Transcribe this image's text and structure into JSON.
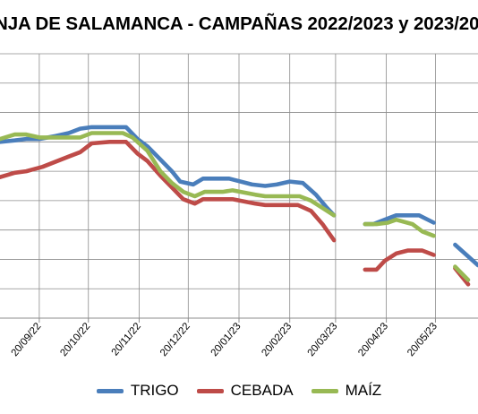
{
  "chart_data": {
    "type": "line",
    "title": "NJA DE SALAMANCA - CAMPAÑAS 2022/2023 y 2023/20",
    "xlabel": "",
    "ylabel": "",
    "x_tick_labels": [
      "20/09/22",
      "20/10/22",
      "20/11/22",
      "20/12/22",
      "20/01/23",
      "20/02/23",
      "20/03/23",
      "20/04/23",
      "20/05/23"
    ],
    "x_range": [
      "2022-08-27",
      "2023-06-15"
    ],
    "y_range": [
      0,
      9
    ],
    "grid": true,
    "legend_position": "bottom",
    "series": [
      {
        "name": "TRIGO",
        "color": "#4a7ebb",
        "segments": [
          [
            [
              "2022-08-27",
              6.0
            ],
            [
              "2022-09-05",
              6.05
            ],
            [
              "2022-09-12",
              6.1
            ],
            [
              "2022-09-20",
              6.1
            ],
            [
              "2022-09-30",
              6.2
            ],
            [
              "2022-10-08",
              6.3
            ],
            [
              "2022-10-15",
              6.45
            ],
            [
              "2022-10-22",
              6.5
            ],
            [
              "2022-11-05",
              6.5
            ],
            [
              "2022-11-12",
              6.5
            ],
            [
              "2022-11-19",
              6.1
            ],
            [
              "2022-11-25",
              5.85
            ],
            [
              "2022-12-03",
              5.4
            ],
            [
              "2022-12-10",
              5.0
            ],
            [
              "2022-12-15",
              4.65
            ],
            [
              "2022-12-23",
              4.55
            ],
            [
              "2022-12-29",
              4.75
            ],
            [
              "2023-01-14",
              4.75
            ],
            [
              "2023-01-28",
              4.55
            ],
            [
              "2023-02-05",
              4.5
            ],
            [
              "2023-02-12",
              4.55
            ],
            [
              "2023-02-20",
              4.65
            ],
            [
              "2023-02-28",
              4.6
            ],
            [
              "2023-03-08",
              4.2
            ],
            [
              "2023-03-14",
              3.8
            ],
            [
              "2023-03-19",
              3.5
            ]
          ],
          [
            [
              "2023-04-07",
              3.2
            ],
            [
              "2023-04-12",
              3.2
            ],
            [
              "2023-04-19",
              3.35
            ],
            [
              "2023-04-26",
              3.5
            ],
            [
              "2023-05-10",
              3.5
            ],
            [
              "2023-05-19",
              3.25
            ]
          ],
          [
            [
              "2023-06-01",
              2.5
            ],
            [
              "2023-06-15",
              1.8
            ]
          ]
        ]
      },
      {
        "name": "CEBADA",
        "color": "#be4b48",
        "segments": [
          [
            [
              "2022-08-27",
              4.8
            ],
            [
              "2022-09-05",
              4.95
            ],
            [
              "2022-09-12",
              5.0
            ],
            [
              "2022-09-22",
              5.15
            ],
            [
              "2022-10-08",
              5.5
            ],
            [
              "2022-10-15",
              5.65
            ],
            [
              "2022-10-22",
              5.95
            ],
            [
              "2022-11-02",
              6.0
            ],
            [
              "2022-11-12",
              6.0
            ],
            [
              "2022-11-19",
              5.6
            ],
            [
              "2022-11-25",
              5.35
            ],
            [
              "2022-12-03",
              4.85
            ],
            [
              "2022-12-10",
              4.45
            ],
            [
              "2022-12-17",
              4.05
            ],
            [
              "2022-12-24",
              3.9
            ],
            [
              "2022-12-29",
              4.05
            ],
            [
              "2023-01-16",
              4.05
            ],
            [
              "2023-01-30",
              3.9
            ],
            [
              "2023-02-05",
              3.85
            ],
            [
              "2023-02-25",
              3.85
            ],
            [
              "2023-03-05",
              3.65
            ],
            [
              "2023-03-12",
              3.2
            ],
            [
              "2023-03-19",
              2.65
            ]
          ],
          [
            [
              "2023-04-07",
              1.65
            ],
            [
              "2023-04-14",
              1.65
            ],
            [
              "2023-04-19",
              1.95
            ],
            [
              "2023-04-26",
              2.2
            ],
            [
              "2023-05-03",
              2.3
            ],
            [
              "2023-05-12",
              2.3
            ],
            [
              "2023-05-19",
              2.15
            ]
          ],
          [
            [
              "2023-06-01",
              1.7
            ],
            [
              "2023-06-09",
              1.15
            ]
          ]
        ]
      },
      {
        "name": "MAÍZ",
        "color": "#98b954",
        "segments": [
          [
            [
              "2022-08-27",
              6.1
            ],
            [
              "2022-09-05",
              6.25
            ],
            [
              "2022-09-12",
              6.25
            ],
            [
              "2022-09-20",
              6.15
            ],
            [
              "2022-10-15",
              6.15
            ],
            [
              "2022-10-22",
              6.3
            ],
            [
              "2022-11-10",
              6.3
            ],
            [
              "2022-11-16",
              6.15
            ],
            [
              "2022-11-25",
              5.7
            ],
            [
              "2022-12-03",
              5.0
            ],
            [
              "2022-12-10",
              4.6
            ],
            [
              "2022-12-17",
              4.3
            ],
            [
              "2022-12-24",
              4.15
            ],
            [
              "2022-12-30",
              4.3
            ],
            [
              "2023-01-10",
              4.3
            ],
            [
              "2023-01-16",
              4.35
            ],
            [
              "2023-01-30",
              4.2
            ],
            [
              "2023-02-05",
              4.15
            ],
            [
              "2023-02-26",
              4.15
            ],
            [
              "2023-03-05",
              4.0
            ],
            [
              "2023-03-12",
              3.75
            ],
            [
              "2023-03-19",
              3.5
            ]
          ],
          [
            [
              "2023-04-07",
              3.2
            ],
            [
              "2023-04-14",
              3.2
            ],
            [
              "2023-04-21",
              3.25
            ],
            [
              "2023-04-26",
              3.35
            ],
            [
              "2023-05-06",
              3.2
            ],
            [
              "2023-05-12",
              2.95
            ],
            [
              "2023-05-19",
              2.8
            ]
          ],
          [
            [
              "2023-06-01",
              1.75
            ],
            [
              "2023-06-09",
              1.3
            ]
          ]
        ]
      }
    ]
  }
}
